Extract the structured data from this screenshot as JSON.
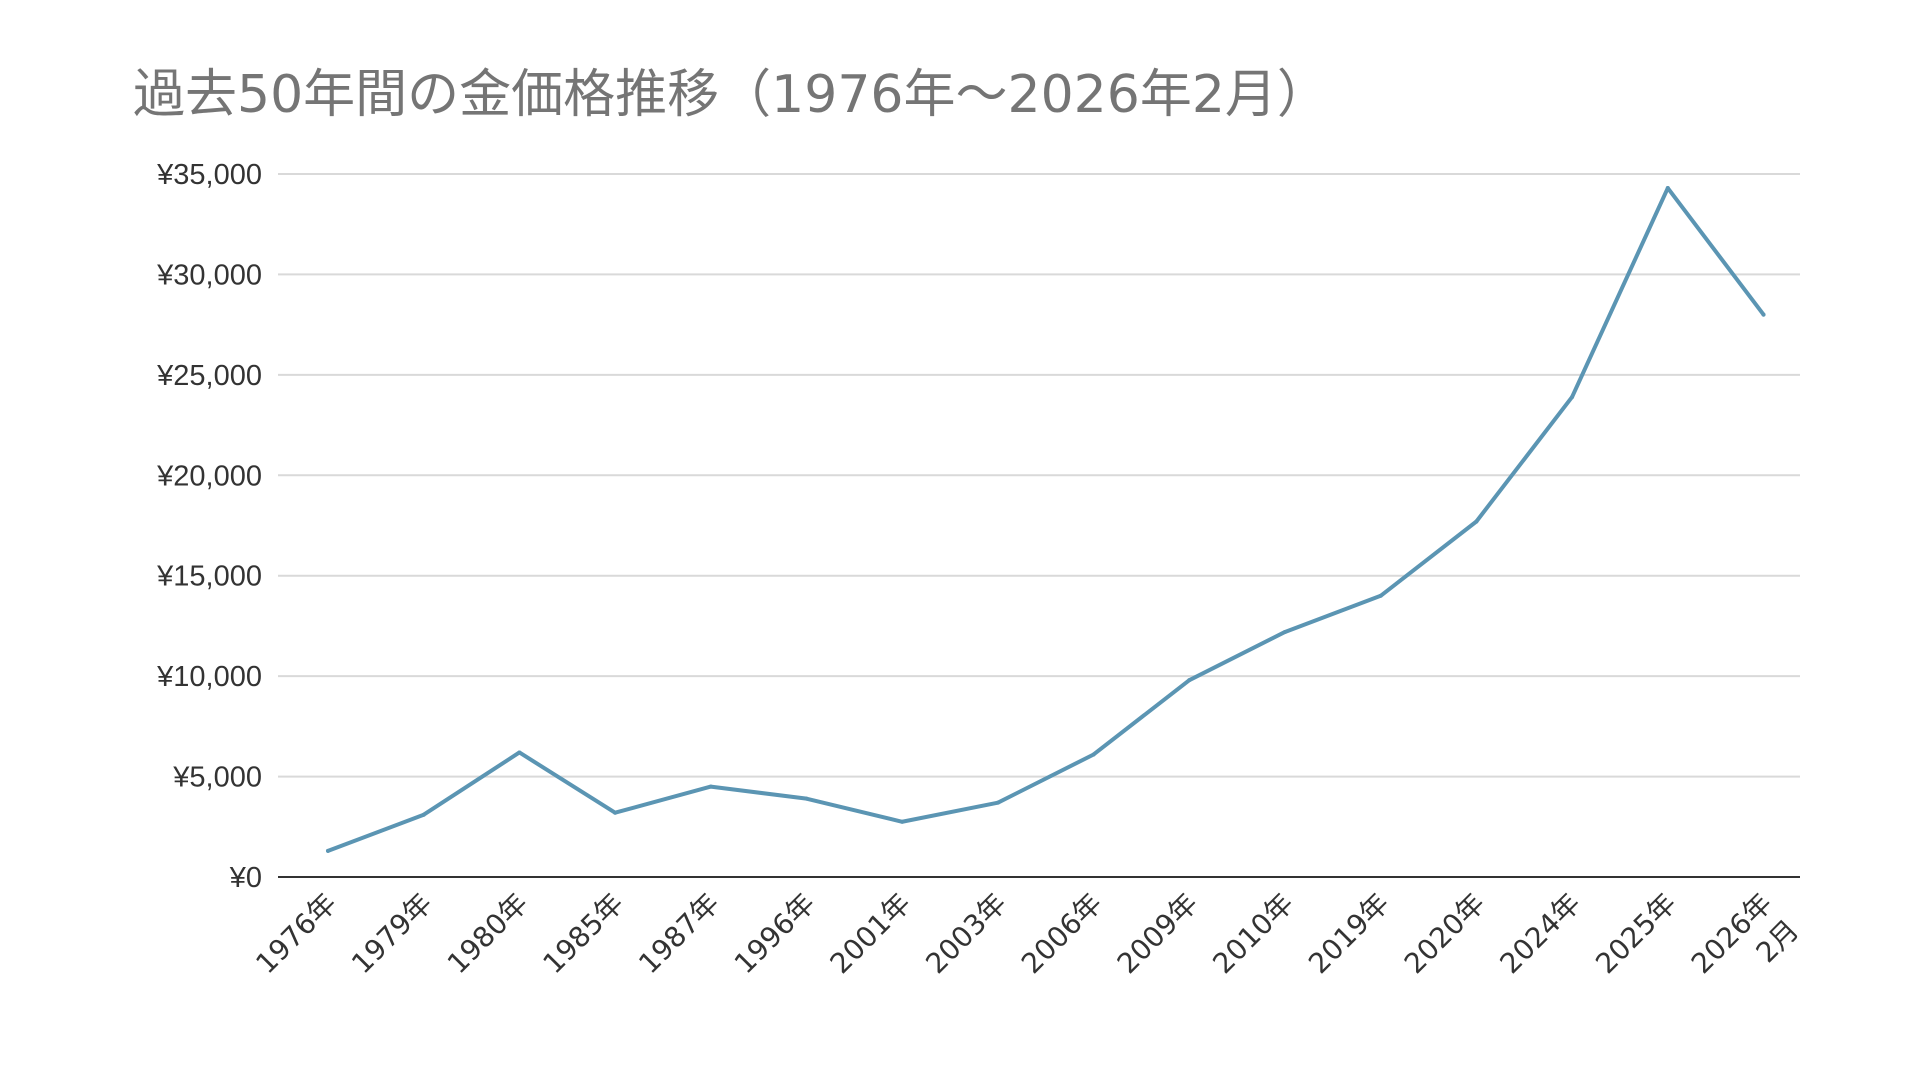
{
  "chart_data": {
    "type": "line",
    "title": "過去50年間の金価格推移（1976年～2026年2月）",
    "xlabel": "",
    "ylabel": "",
    "categories": [
      "1976年",
      "1979年",
      "1980年",
      "1985年",
      "1987年",
      "1996年",
      "2001年",
      "2003年",
      "2006年",
      "2009年",
      "2010年",
      "2019年",
      "2020年",
      "2024年",
      "2025年",
      "2026年　2月"
    ],
    "x_tick_lines": [
      [
        "1976年"
      ],
      [
        "1979年"
      ],
      [
        "1980年"
      ],
      [
        "1985年"
      ],
      [
        "1987年"
      ],
      [
        "1996年"
      ],
      [
        "2001年"
      ],
      [
        "2003年"
      ],
      [
        "2006年"
      ],
      [
        "2009年"
      ],
      [
        "2010年"
      ],
      [
        "2019年"
      ],
      [
        "2020年"
      ],
      [
        "2024年"
      ],
      [
        "2025年"
      ],
      [
        "2026年",
        "2月"
      ]
    ],
    "series": [
      {
        "values": [
          1300,
          3100,
          6200,
          3200,
          4500,
          3900,
          2750,
          3700,
          6100,
          9800,
          12200,
          14000,
          17700,
          23900,
          34300,
          28000
        ]
      }
    ],
    "ylim": [
      0,
      35000
    ],
    "yticks": [
      0,
      5000,
      10000,
      15000,
      20000,
      25000,
      30000,
      35000
    ],
    "ytick_labels": [
      "¥0",
      "¥5,000",
      "¥10,000",
      "¥15,000",
      "¥20,000",
      "¥25,000",
      "¥30,000",
      "¥35,000"
    ],
    "grid": true,
    "legend": "none",
    "colors": {
      "line": "#5b95b3",
      "grid": "#d9d9d9",
      "axis": "#333333",
      "title": "#757575"
    }
  }
}
